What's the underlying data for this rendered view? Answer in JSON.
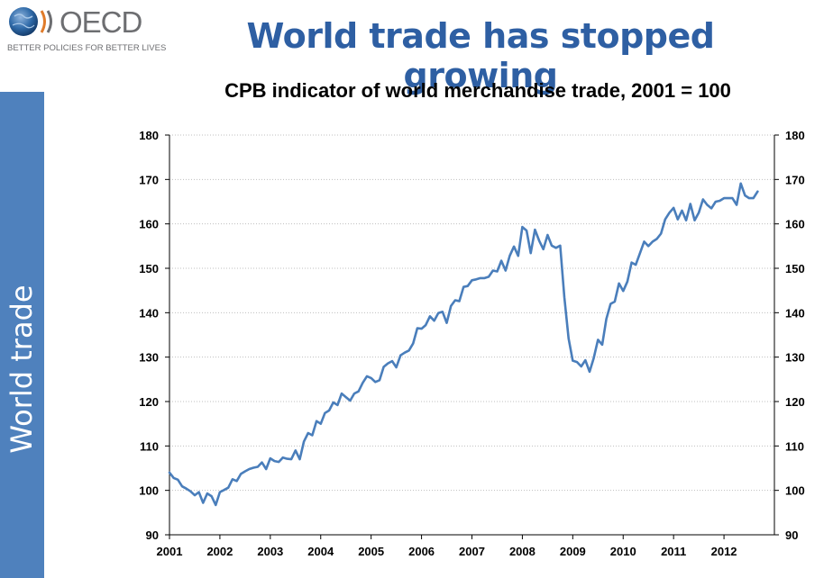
{
  "header": {
    "logo_text": "OECD",
    "logo_tagline": "BETTER POLICIES FOR BETTER LIVES",
    "headline": "World trade has stopped growing"
  },
  "sidebar": {
    "label": "World trade"
  },
  "colors": {
    "headline": "#2e5fa3",
    "sidebar": "#4f81bd",
    "series": "#4a7ebb",
    "gridline": "#bfbfbf"
  },
  "chart_data": {
    "type": "line",
    "title": "CPB indicator of world merchandise trade, 2001 = 100",
    "xlabel": "",
    "ylabel": "",
    "xlim": [
      2001,
      2013
    ],
    "ylim": [
      90,
      180
    ],
    "y_ticks": [
      90,
      100,
      110,
      120,
      130,
      140,
      150,
      160,
      170,
      180
    ],
    "x_ticks": [
      "2001",
      "2002",
      "2003",
      "2004",
      "2005",
      "2006",
      "2007",
      "2008",
      "2009",
      "2010",
      "2011",
      "2012"
    ],
    "dual_y_axis": true,
    "grid": "horizontal dotted",
    "series": [
      {
        "start": "2001-01",
        "frequency": "monthly",
        "values": [
          104.0,
          102.8,
          102.4,
          100.9,
          100.4,
          99.8,
          98.9,
          99.6,
          97.2,
          99.3,
          98.7,
          96.7,
          99.6,
          100.1,
          100.6,
          102.5,
          102.1,
          103.7,
          104.3,
          104.8,
          105.1,
          105.3,
          106.3,
          104.8,
          107.2,
          106.6,
          106.4,
          107.4,
          107.1,
          107.0,
          109.0,
          107.0,
          111.0,
          112.9,
          112.4,
          115.6,
          115.0,
          117.4,
          118.0,
          119.8,
          119.2,
          121.8,
          121.0,
          120.2,
          121.8,
          122.3,
          124.2,
          125.7,
          125.3,
          124.4,
          124.8,
          127.8,
          128.6,
          129.1,
          127.7,
          130.4,
          131.0,
          131.5,
          133.1,
          136.5,
          136.4,
          137.2,
          139.2,
          138.2,
          139.9,
          140.2,
          137.7,
          141.5,
          142.8,
          142.6,
          145.8,
          146.0,
          147.3,
          147.5,
          147.8,
          147.8,
          148.1,
          149.5,
          149.3,
          151.7,
          149.5,
          152.8,
          154.9,
          152.8,
          159.3,
          158.5,
          153.4,
          158.7,
          156.2,
          154.3,
          157.5,
          155.1,
          154.6,
          155.1,
          143.5,
          134.2,
          129.2,
          128.9,
          127.9,
          129.3,
          126.7,
          129.8,
          133.9,
          132.8,
          138.6,
          142.0,
          142.5,
          146.6,
          144.9,
          147.0,
          151.3,
          150.8,
          153.4,
          156.0,
          155.0,
          156.0,
          156.6,
          157.8,
          161.0,
          162.5,
          163.6,
          161.0,
          163.0,
          160.8,
          164.5,
          160.8,
          162.5,
          165.5,
          164.3,
          163.5,
          165.0,
          165.2,
          165.8,
          165.8,
          165.8,
          164.3,
          169.1,
          166.4,
          165.8,
          165.8,
          167.3
        ]
      }
    ]
  }
}
